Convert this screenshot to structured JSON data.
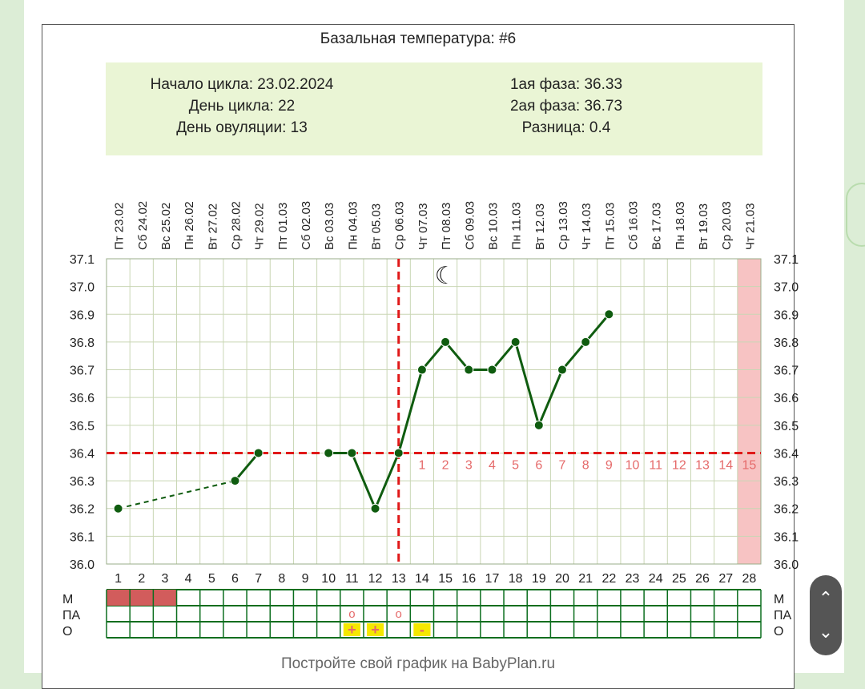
{
  "title": "Базальная температура: #6",
  "info": {
    "left": [
      "Начало цикла: 23.02.2024",
      "День цикла: 22",
      "День овуляции: 13"
    ],
    "right": [
      "1ая фаза: 36.33",
      "2ая фаза: 36.73",
      "Разница: 0.4"
    ]
  },
  "footer": "Постройте свой график на BabyPlan.ru",
  "row_labels": [
    "М",
    "ПА",
    "О"
  ],
  "nav": {
    "up_icon": "chevron-up-icon",
    "down_icon": "chevron-down-icon"
  },
  "chart_data": {
    "type": "line",
    "title": "Базальная температура: #6",
    "x_days": [
      1,
      2,
      3,
      4,
      5,
      6,
      7,
      8,
      9,
      10,
      11,
      12,
      13,
      14,
      15,
      16,
      17,
      18,
      19,
      20,
      21,
      22,
      23,
      24,
      25,
      26,
      27,
      28
    ],
    "dates": [
      "23.02",
      "24.02",
      "25.02",
      "26.02",
      "27.02",
      "28.02",
      "29.02",
      "01.03",
      "02.03",
      "03.03",
      "04.03",
      "05.03",
      "06.03",
      "07.03",
      "08.03",
      "09.03",
      "10.03",
      "11.03",
      "12.03",
      "13.03",
      "14.03",
      "15.03",
      "16.03",
      "17.03",
      "18.03",
      "19.03",
      "20.03",
      "21.03"
    ],
    "weekdays": [
      "Пт",
      "Сб",
      "Вс",
      "Пн",
      "Вт",
      "Ср",
      "Чт",
      "Пт",
      "Сб",
      "Вс",
      "Пн",
      "Вт",
      "Ср",
      "Чт",
      "Пт",
      "Сб",
      "Вс",
      "Пн",
      "Вт",
      "Ср",
      "Чт",
      "Пт",
      "Сб",
      "Вс",
      "Пн",
      "Вт",
      "Ср",
      "Чт"
    ],
    "y_ticks": [
      "37.1",
      "37.0",
      "36.9",
      "36.8",
      "36.7",
      "36.6",
      "36.5",
      "36.4",
      "36.3",
      "36.2",
      "36.1",
      "36.0"
    ],
    "ylim": [
      36.0,
      37.1
    ],
    "grid": true,
    "temperatures": [
      {
        "day": 1,
        "value": 36.2
      },
      {
        "day": 6,
        "value": 36.3
      },
      {
        "day": 7,
        "value": 36.4
      },
      {
        "day": 10,
        "value": 36.4
      },
      {
        "day": 11,
        "value": 36.4
      },
      {
        "day": 12,
        "value": 36.2
      },
      {
        "day": 13,
        "value": 36.4
      },
      {
        "day": 14,
        "value": 36.7
      },
      {
        "day": 15,
        "value": 36.8
      },
      {
        "day": 16,
        "value": 36.7
      },
      {
        "day": 17,
        "value": 36.7
      },
      {
        "day": 18,
        "value": 36.8
      },
      {
        "day": 19,
        "value": 36.5
      },
      {
        "day": 20,
        "value": 36.7
      },
      {
        "day": 21,
        "value": 36.8
      },
      {
        "day": 22,
        "value": 36.9
      }
    ],
    "dashed_gap": [
      1,
      6
    ],
    "coverline": 36.4,
    "ovulation_day": 13,
    "luteal_days": [
      {
        "day": 14,
        "label": "1"
      },
      {
        "day": 15,
        "label": "2"
      },
      {
        "day": 16,
        "label": "3"
      },
      {
        "day": 17,
        "label": "4"
      },
      {
        "day": 18,
        "label": "5"
      },
      {
        "day": 19,
        "label": "6"
      },
      {
        "day": 20,
        "label": "7"
      },
      {
        "day": 21,
        "label": "8"
      },
      {
        "day": 22,
        "label": "9"
      },
      {
        "day": 23,
        "label": "10"
      },
      {
        "day": 24,
        "label": "11"
      },
      {
        "day": 25,
        "label": "12"
      },
      {
        "day": 26,
        "label": "13"
      },
      {
        "day": 27,
        "label": "14"
      },
      {
        "day": 28,
        "label": "15"
      }
    ],
    "highlight_day": 28,
    "moon_day": 15,
    "menstruation_days": [
      1,
      2,
      3
    ],
    "pa_days": [
      {
        "day": 11,
        "label": "o"
      },
      {
        "day": 13,
        "label": "o"
      }
    ],
    "o_days": [
      {
        "day": 11,
        "label": "+"
      },
      {
        "day": 12,
        "label": "+"
      },
      {
        "day": 14,
        "label": "-"
      }
    ],
    "colors": {
      "line": "#0f5c0f",
      "coverline": "#e01818",
      "luteal": "#e56a6a",
      "highlight": "#f7c3c3",
      "grid": "#c9d6b4",
      "menses": "#d25c5c",
      "o_mark": "#f5e800"
    }
  }
}
